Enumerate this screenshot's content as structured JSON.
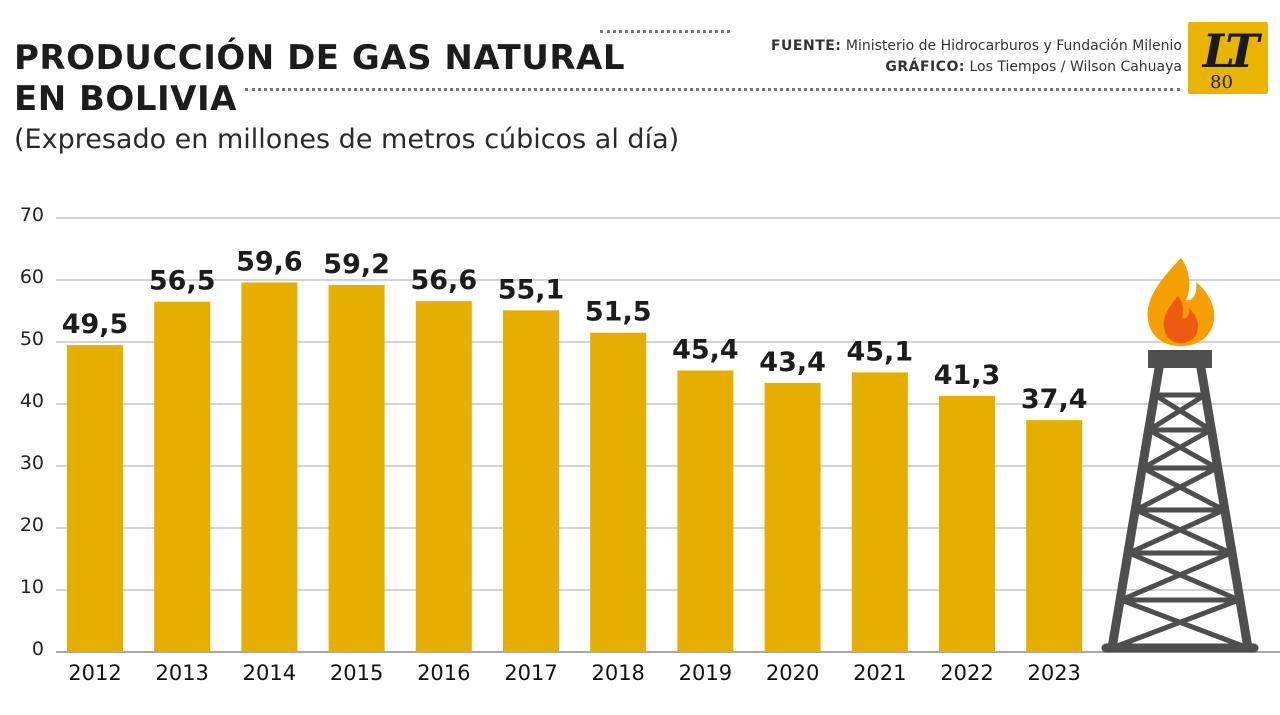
{
  "header": {
    "title": "PRODUCCIÓN DE GAS NATURAL\nEN BOLIVIA",
    "subtitle": "(Expresado en millones de metros cúbicos al día)",
    "source_label": "FUENTE:",
    "source_text": "Ministerio de Hidrocarburos y Fundación Milenio",
    "graphic_label": "GRÁFICO:",
    "graphic_text": "Los Tiempos / Wilson Cahuaya",
    "logo_text": "LT",
    "logo_number": "80"
  },
  "colors": {
    "bar": "#e5ae00",
    "grid": "#b9b9b9",
    "derrick": "#4e4e4e",
    "flame_outer": "#f5a000",
    "flame_inner": "#ee5a10"
  },
  "icons": [
    "gas-derrick-icon",
    "flame-icon"
  ],
  "chart_data": {
    "type": "bar",
    "title": "PRODUCCIÓN DE GAS NATURAL EN BOLIVIA",
    "subtitle": "(Expresado en millones de metros cúbicos al día)",
    "categories": [
      "2012",
      "2013",
      "2014",
      "2015",
      "2016",
      "2017",
      "2018",
      "2019",
      "2020",
      "2021",
      "2022",
      "2023"
    ],
    "values": [
      49.5,
      56.5,
      59.6,
      59.2,
      56.6,
      55.1,
      51.5,
      45.4,
      43.4,
      45.1,
      41.3,
      37.4
    ],
    "value_labels": [
      "49,5",
      "56,5",
      "59,6",
      "59,2",
      "56,6",
      "55,1",
      "51,5",
      "45,4",
      "43,4",
      "45,1",
      "41,3",
      "37,4"
    ],
    "yticks": [
      0,
      10,
      20,
      30,
      40,
      50,
      60,
      70
    ],
    "ylim": [
      0,
      70
    ],
    "xlabel": "",
    "ylabel": "",
    "grid": true,
    "legend": "none"
  }
}
